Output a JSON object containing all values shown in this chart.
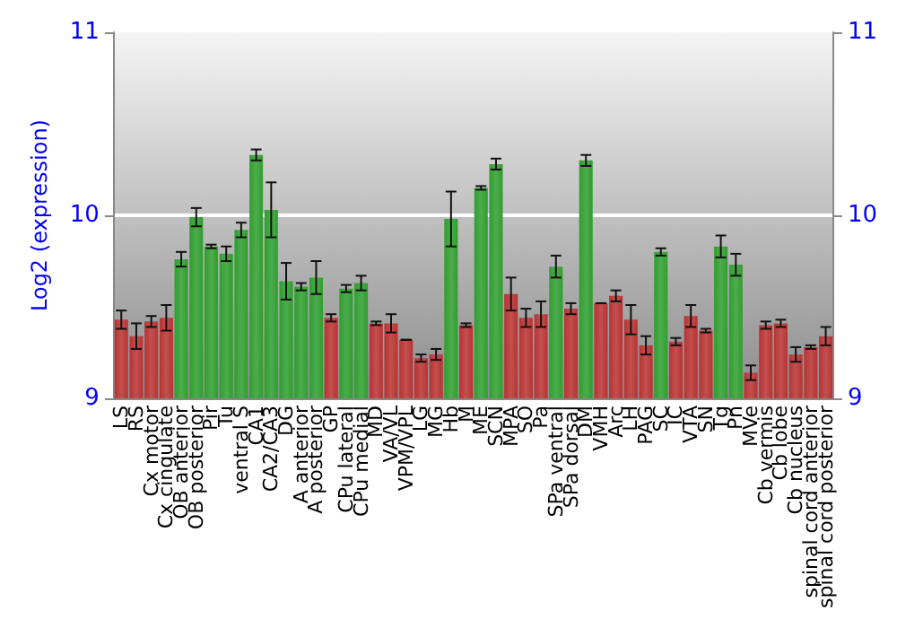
{
  "chart_data": {
    "type": "bar",
    "ylabel": "Log2 (expression)",
    "categories": [
      "LS",
      "RS",
      "Cx motor",
      "Cx cingulate",
      "OB anterior",
      "OB posterior",
      "Pir",
      "Tu",
      "ventral S",
      "CA1",
      "CA2/CA3",
      "DG",
      "A anterior",
      "A posterior",
      "GP",
      "CPu lateral",
      "CPu medial",
      "MD",
      "VA/VL",
      "VPM/VPL",
      "LG",
      "MG",
      "Hb",
      "M",
      "ME",
      "SCN",
      "MPA",
      "SO",
      "Pa",
      "SPa ventral",
      "SPa dorsal",
      "DM",
      "VMH",
      "Arc",
      "LH",
      "PAG",
      "SC",
      "IC",
      "VTA",
      "SN",
      "Tg",
      "Pn",
      "MVe",
      "Cb vermis",
      "Cb lobe",
      "Cb nucleus",
      "spinal cord anterior",
      "spinal cord posterior"
    ],
    "values": [
      9.43,
      9.34,
      9.42,
      9.44,
      9.76,
      9.99,
      9.83,
      9.79,
      9.92,
      10.33,
      10.03,
      9.64,
      9.61,
      9.66,
      9.44,
      9.6,
      9.63,
      9.41,
      9.41,
      9.32,
      9.22,
      9.24,
      9.98,
      9.4,
      10.15,
      10.28,
      9.57,
      9.44,
      9.46,
      9.72,
      9.49,
      10.3,
      9.52,
      9.56,
      9.43,
      9.29,
      9.8,
      9.31,
      9.45,
      9.37,
      9.83,
      9.73,
      9.14,
      9.4,
      9.41,
      9.24,
      9.28,
      9.34
    ],
    "errors": [
      0.05,
      0.07,
      0.03,
      0.07,
      0.04,
      0.05,
      0.01,
      0.04,
      0.04,
      0.03,
      0.15,
      0.1,
      0.02,
      0.09,
      0.02,
      0.02,
      0.04,
      0.01,
      0.05,
      null,
      0.02,
      0.03,
      0.15,
      0.01,
      0.01,
      0.03,
      0.09,
      0.05,
      0.07,
      0.06,
      0.03,
      0.03,
      null,
      0.03,
      0.08,
      0.05,
      0.02,
      0.02,
      0.06,
      0.01,
      0.06,
      0.06,
      0.04,
      0.02,
      0.02,
      0.04,
      0.01,
      0.05
    ],
    "colors": [
      "#b83232",
      "#b83232",
      "#b83232",
      "#b83232",
      "#2e9e2e",
      "#2e9e2e",
      "#2e9e2e",
      "#2e9e2e",
      "#2e9e2e",
      "#2e9e2e",
      "#2e9e2e",
      "#2e9e2e",
      "#2e9e2e",
      "#2e9e2e",
      "#b83232",
      "#2e9e2e",
      "#2e9e2e",
      "#b83232",
      "#b83232",
      "#b83232",
      "#b83232",
      "#b83232",
      "#2e9e2e",
      "#b83232",
      "#2e9e2e",
      "#2e9e2e",
      "#b83232",
      "#b83232",
      "#b83232",
      "#2e9e2e",
      "#b83232",
      "#2e9e2e",
      "#b83232",
      "#b83232",
      "#b83232",
      "#b83232",
      "#2e9e2e",
      "#b83232",
      "#b83232",
      "#b83232",
      "#2e9e2e",
      "#2e9e2e",
      "#b83232",
      "#b83232",
      "#b83232",
      "#b83232",
      "#b83232",
      "#b83232"
    ],
    "ylim": [
      9,
      11
    ],
    "yticks": [
      9,
      10,
      11
    ],
    "y2lim": [
      9,
      11
    ],
    "y2ticks": [
      9,
      10,
      11
    ],
    "grid": "y"
  }
}
